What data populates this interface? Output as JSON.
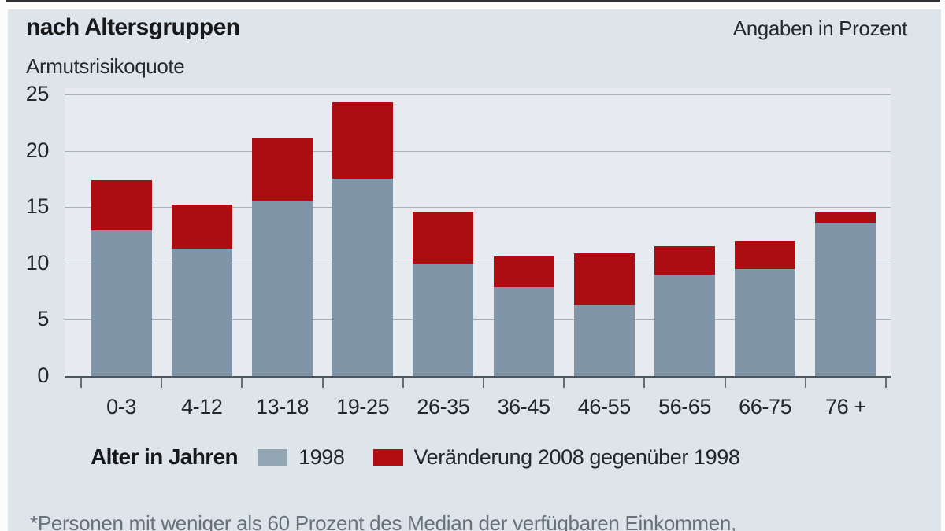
{
  "header": {
    "title": "nach Altersgruppen",
    "subtitle": "Armutsrisikoquote",
    "unit_note": "Angaben in Prozent"
  },
  "chart_data": {
    "type": "bar",
    "stacked": true,
    "title": "Armutsrisikoquote nach Altersgruppen",
    "xlabel": "Alter in Jahren",
    "ylabel": "Angaben in Prozent",
    "ylim": [
      0,
      25
    ],
    "yticks": [
      0,
      5,
      10,
      15,
      20,
      25
    ],
    "grid": true,
    "legend_position": "bottom",
    "categories": [
      "0-3",
      "4-12",
      "13-18",
      "19-25",
      "26-35",
      "36-45",
      "46-55",
      "56-65",
      "66-75",
      "76 +"
    ],
    "series": [
      {
        "name": "1998",
        "color": "#8096a8",
        "values": [
          12.9,
          11.3,
          15.6,
          17.5,
          10.0,
          7.9,
          6.3,
          9.0,
          9.5,
          13.6
        ]
      },
      {
        "name": "Veränderung 2008 gegenüber 1998",
        "color": "#ab0d10",
        "values": [
          4.5,
          3.9,
          5.5,
          6.8,
          4.6,
          2.7,
          4.6,
          2.5,
          2.5,
          0.9
        ]
      }
    ],
    "totals_2008": [
      17.4,
      15.2,
      21.1,
      24.3,
      14.6,
      10.6,
      10.9,
      11.5,
      12.0,
      14.5
    ]
  },
  "legend": {
    "title": "Alter in Jahren",
    "items": [
      {
        "label": "1998",
        "color": "#92a6b4"
      },
      {
        "label": "Veränderung 2008 gegenüber 1998",
        "color": "#b40d10"
      }
    ]
  },
  "footnote": "*Personen mit weniger als 60 Prozent des Median der verfügbaren Einkommen,"
}
